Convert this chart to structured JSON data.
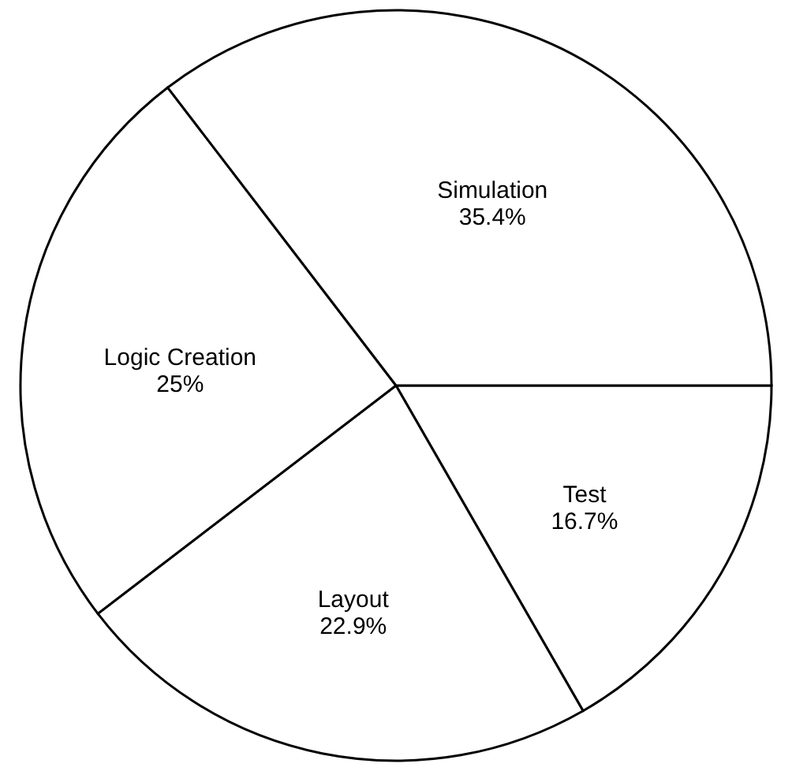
{
  "chart_data": {
    "type": "pie",
    "categories": [
      "Test",
      "Layout",
      "Logic Creation",
      "Simulation"
    ],
    "values": [
      16.7,
      22.9,
      25,
      35.4
    ],
    "value_labels": [
      "16.7%",
      "22.9%",
      "25%",
      "35.4%"
    ],
    "colors": [
      "#ffffff",
      "#ffffff",
      "#ffffff",
      "#ffffff"
    ],
    "legend": false
  }
}
